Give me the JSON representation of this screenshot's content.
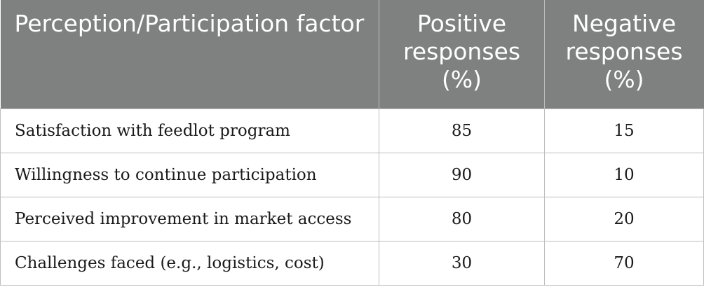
{
  "table": {
    "headers": {
      "factor": "Perception/Participation factor",
      "positive": "Positive responses (%)",
      "negative": "Negative responses (%)"
    },
    "rows": [
      {
        "factor": "Satisfaction with feedlot program",
        "positive": "85",
        "negative": "15"
      },
      {
        "factor": "Willingness to continue participation",
        "positive": "90",
        "negative": "10"
      },
      {
        "factor": "Perceived improvement in market access",
        "positive": "80",
        "negative": "20"
      },
      {
        "factor": "Challenges faced (e.g., logistics, cost)",
        "positive": "30",
        "negative": "70"
      }
    ]
  },
  "colors": {
    "header_bg": "#7f8180",
    "header_text": "#ffffff",
    "grid_line": "#bdbdbd",
    "body_text": "#1a1a1a"
  }
}
